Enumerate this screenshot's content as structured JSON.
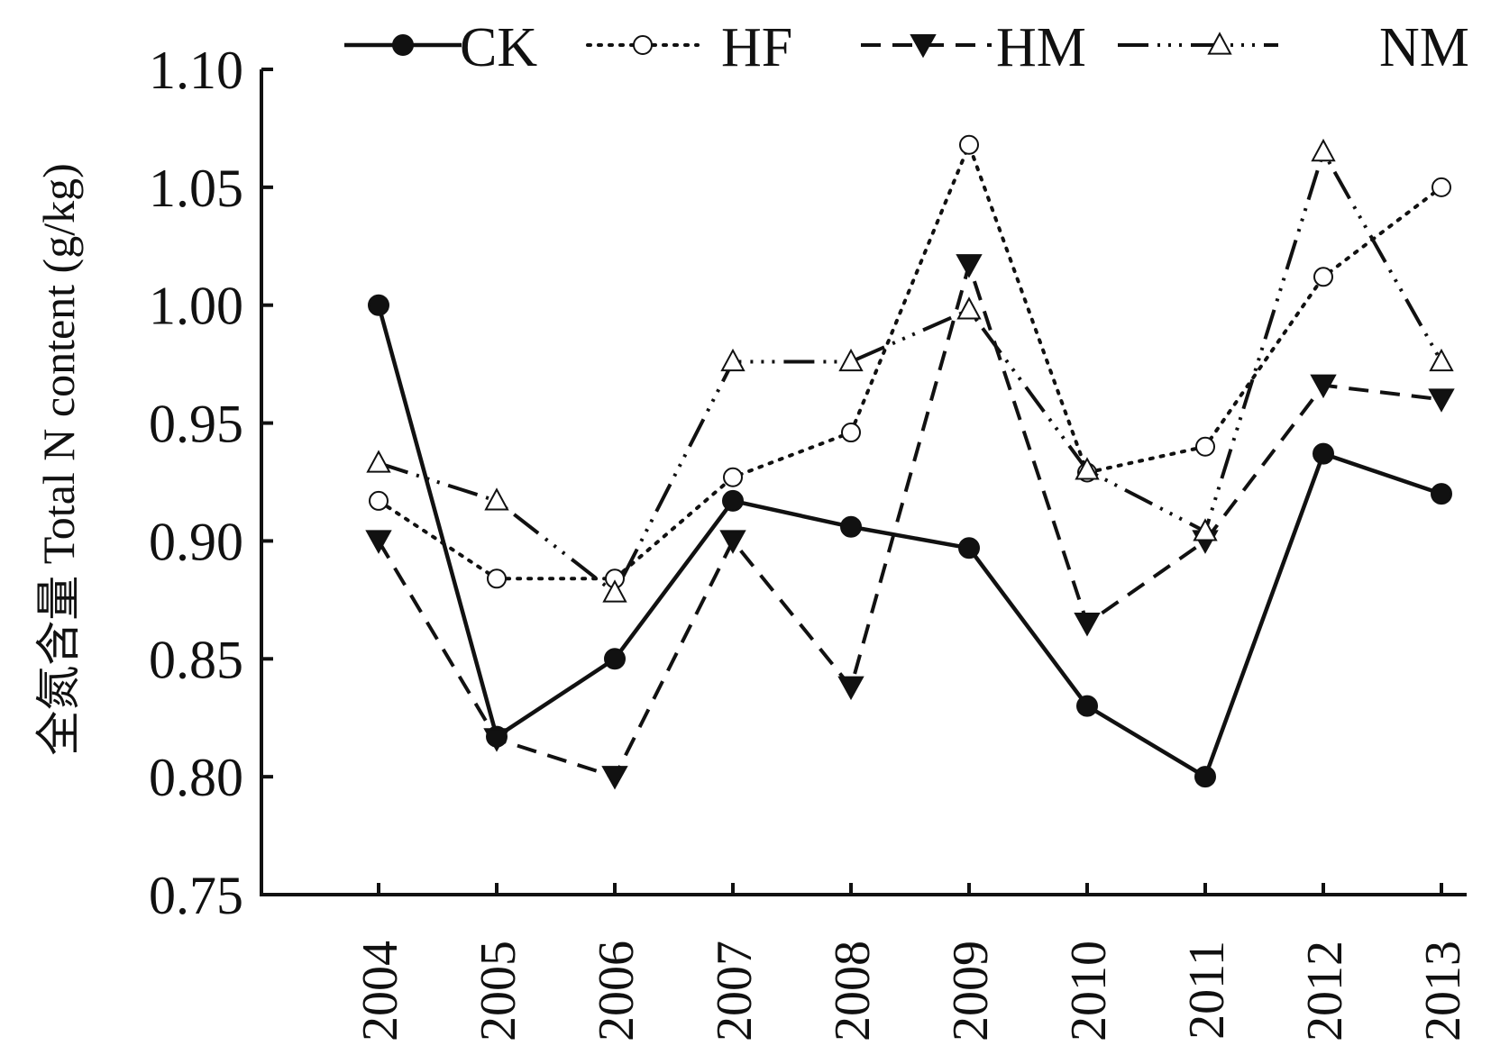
{
  "chart_data": {
    "type": "line",
    "title": "",
    "xlabel": "",
    "ylabel": "全氮含量 Total N content (g/kg)",
    "x": [
      2004,
      2005,
      2006,
      2007,
      2008,
      2009,
      2010,
      2011,
      2012,
      2013
    ],
    "x_tick_labels": [
      "2004",
      "2005",
      "2006",
      "2007",
      "2008",
      "2009",
      "2010",
      "2011",
      "2012",
      "2013"
    ],
    "ylim": [
      0.75,
      1.1
    ],
    "y_tick_labels": [
      "0.75",
      "0.80",
      "0.85",
      "0.90",
      "0.95",
      "1.00",
      "1.05",
      "1.10"
    ],
    "grid": false,
    "legend_position": "top",
    "series": [
      {
        "name": "CK",
        "values": [
          1.0,
          0.817,
          0.85,
          0.917,
          0.906,
          0.897,
          0.83,
          0.8,
          0.937,
          0.92
        ],
        "marker": "filled-circle",
        "line_style": "solid",
        "color": "#111111"
      },
      {
        "name": "HF",
        "values": [
          0.917,
          0.884,
          0.884,
          0.927,
          0.946,
          1.068,
          0.929,
          0.94,
          1.012,
          1.05
        ],
        "marker": "open-circle",
        "line_style": "dotted",
        "color": "#111111"
      },
      {
        "name": "HM",
        "values": [
          0.9,
          0.816,
          0.8,
          0.9,
          0.838,
          1.017,
          0.865,
          0.9,
          0.966,
          0.96
        ],
        "marker": "filled-triangle-down",
        "line_style": "dashed",
        "color": "#111111"
      },
      {
        "name": "NM",
        "values": [
          0.933,
          0.917,
          0.878,
          0.976,
          0.976,
          0.998,
          0.93,
          0.904,
          1.065,
          0.976
        ],
        "marker": "open-triangle-up",
        "line_style": "dash-dot-dot",
        "color": "#111111"
      }
    ]
  }
}
